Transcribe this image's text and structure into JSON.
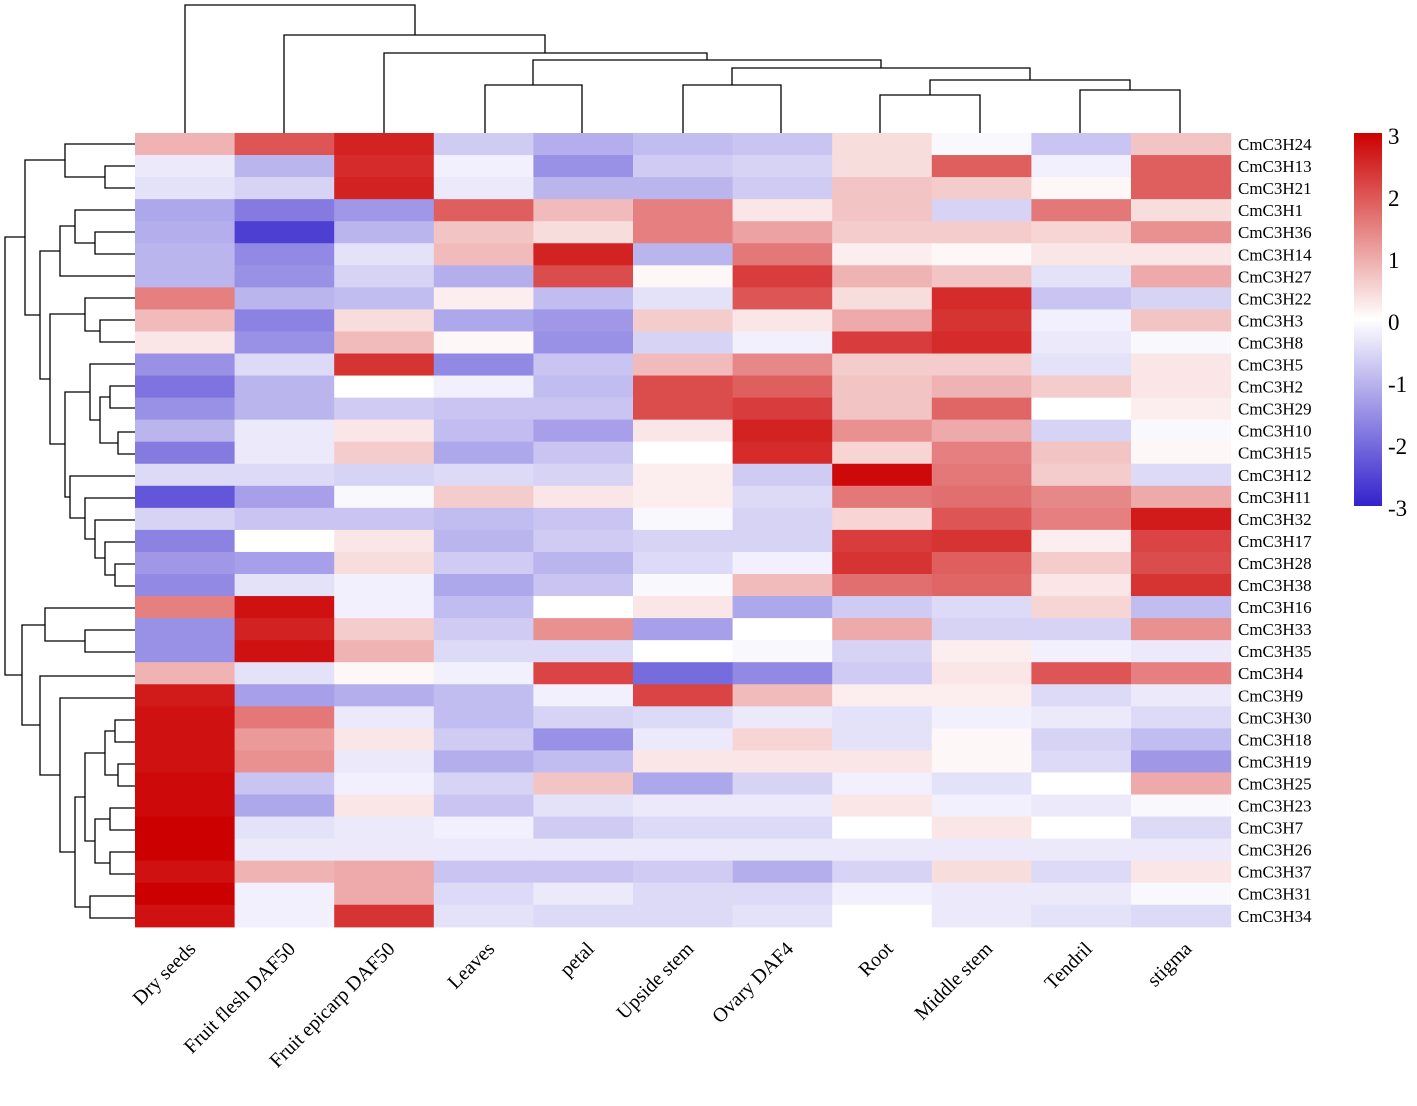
{
  "chart_data": {
    "type": "heatmap",
    "title": "",
    "colorscale": {
      "min": -3,
      "mid": 0,
      "max": 3,
      "low_color": "#3322cc",
      "mid_color": "#ffffff",
      "high_color": "#cc0000"
    },
    "legend": {
      "ticks": [
        "3",
        "2",
        "1",
        "0",
        "-1",
        "-2",
        "-3"
      ],
      "placement": "right"
    },
    "columns": [
      "Dry seeds",
      "Fruit flesh DAF50",
      "Fruit epicarp DAF50",
      "Leaves",
      "petal",
      "Upside stem",
      "Ovary DAF4",
      "Root",
      "Middle stem",
      "Tendril",
      "stigma"
    ],
    "rows": [
      "CmC3H24",
      "CmC3H13",
      "CmC3H21",
      "CmC3H1",
      "CmC3H36",
      "CmC3H14",
      "CmC3H27",
      "CmC3H22",
      "CmC3H3",
      "CmC3H8",
      "CmC3H5",
      "CmC3H2",
      "CmC3H29",
      "CmC3H10",
      "CmC3H15",
      "CmC3H12",
      "CmC3H11",
      "CmC3H32",
      "CmC3H17",
      "CmC3H28",
      "CmC3H38",
      "CmC3H16",
      "CmC3H33",
      "CmC3H35",
      "CmC3H4",
      "CmC3H9",
      "CmC3H30",
      "CmC3H18",
      "CmC3H19",
      "CmC3H25",
      "CmC3H23",
      "CmC3H7",
      "CmC3H26",
      "CmC3H37",
      "CmC3H31",
      "CmC3H34"
    ],
    "values": [
      [
        0.9,
        2.0,
        2.6,
        -0.7,
        -1.1,
        -0.9,
        -0.8,
        0.4,
        -0.1,
        -0.8,
        0.7
      ],
      [
        -0.3,
        -1.0,
        2.5,
        -0.2,
        -1.5,
        -0.7,
        -0.6,
        0.4,
        1.9,
        -0.2,
        1.9
      ],
      [
        -0.4,
        -0.6,
        2.6,
        -0.3,
        -1.0,
        -1.0,
        -0.7,
        0.7,
        0.6,
        0.1,
        1.9
      ],
      [
        -1.2,
        -1.8,
        -1.4,
        1.9,
        0.8,
        1.5,
        0.3,
        0.7,
        -0.6,
        1.6,
        0.4
      ],
      [
        -1.1,
        -2.6,
        -1.0,
        0.7,
        0.4,
        1.5,
        1.1,
        0.6,
        0.6,
        0.5,
        1.3
      ],
      [
        -1.0,
        -1.6,
        -0.4,
        0.8,
        2.6,
        -1.0,
        1.6,
        0.2,
        0.1,
        0.3,
        0.3
      ],
      [
        -1.0,
        -1.5,
        -0.6,
        -1.1,
        2.1,
        0.1,
        2.3,
        0.9,
        0.7,
        -0.4,
        1.0
      ],
      [
        1.5,
        -1.0,
        -0.9,
        0.2,
        -0.9,
        -0.4,
        2.0,
        0.4,
        2.5,
        -0.8,
        -0.6
      ],
      [
        0.8,
        -1.7,
        0.4,
        -1.2,
        -1.4,
        0.6,
        0.3,
        1.0,
        2.4,
        -0.2,
        0.7
      ],
      [
        0.3,
        -1.5,
        0.8,
        0.1,
        -1.5,
        -0.6,
        -0.2,
        2.3,
        2.5,
        -0.3,
        -0.1
      ],
      [
        -1.5,
        -0.5,
        2.4,
        -1.6,
        -0.8,
        0.8,
        1.4,
        0.6,
        0.6,
        -0.4,
        0.3
      ],
      [
        -1.9,
        -1.0,
        0.0,
        -0.2,
        -0.9,
        2.1,
        1.9,
        0.7,
        0.9,
        0.6,
        0.3
      ],
      [
        -1.5,
        -1.0,
        -0.7,
        -0.8,
        -0.8,
        2.1,
        2.3,
        0.7,
        1.8,
        0.0,
        0.2
      ],
      [
        -1.0,
        -0.3,
        0.3,
        -0.9,
        -1.3,
        0.3,
        2.6,
        1.3,
        1.0,
        -0.6,
        -0.1
      ],
      [
        -1.8,
        -0.3,
        0.6,
        -1.2,
        -0.8,
        0.0,
        2.5,
        0.5,
        1.5,
        0.7,
        0.1
      ],
      [
        -0.5,
        -0.5,
        -0.6,
        -0.5,
        -0.6,
        0.2,
        -0.7,
        2.9,
        1.6,
        0.6,
        -0.5
      ],
      [
        -2.3,
        -1.3,
        -0.1,
        0.6,
        0.3,
        0.2,
        -0.5,
        1.6,
        1.7,
        1.4,
        1.0
      ],
      [
        -0.6,
        -0.8,
        -0.8,
        -0.9,
        -0.8,
        -0.1,
        -0.6,
        0.5,
        2.0,
        1.5,
        2.7
      ],
      [
        -1.7,
        0.0,
        0.3,
        -1.0,
        -0.7,
        -0.6,
        -0.6,
        2.3,
        2.4,
        0.2,
        2.2
      ],
      [
        -1.4,
        -1.3,
        0.4,
        -0.7,
        -1.0,
        -0.5,
        -0.2,
        2.4,
        1.9,
        0.6,
        2.1
      ],
      [
        -1.6,
        -0.4,
        -0.2,
        -1.2,
        -0.8,
        -0.1,
        0.8,
        1.7,
        1.8,
        0.3,
        2.4
      ],
      [
        1.5,
        2.8,
        -0.2,
        -0.9,
        0.0,
        0.3,
        -1.2,
        -0.7,
        -0.5,
        0.5,
        -0.9
      ],
      [
        -1.5,
        2.6,
        0.6,
        -0.7,
        1.3,
        -1.3,
        0.0,
        1.0,
        -0.6,
        -0.6,
        1.3
      ],
      [
        -1.5,
        2.8,
        0.9,
        -0.5,
        -0.5,
        0.0,
        -0.1,
        -0.6,
        0.2,
        -0.2,
        -0.3
      ],
      [
        0.9,
        -0.4,
        0.1,
        -0.2,
        2.2,
        -2.0,
        -1.6,
        -0.7,
        0.3,
        2.0,
        1.5
      ],
      [
        2.7,
        -1.3,
        -1.1,
        -0.9,
        -0.2,
        2.2,
        0.8,
        0.2,
        0.2,
        -0.5,
        -0.3
      ],
      [
        2.8,
        1.6,
        -0.3,
        -0.9,
        -0.6,
        -0.5,
        -0.3,
        -0.4,
        -0.2,
        -0.3,
        -0.5
      ],
      [
        2.8,
        1.2,
        0.3,
        -0.7,
        -1.5,
        -0.3,
        0.5,
        -0.4,
        0.1,
        -0.6,
        -0.9
      ],
      [
        2.8,
        1.3,
        -0.3,
        -1.1,
        -0.9,
        0.3,
        0.3,
        0.3,
        0.1,
        -0.5,
        -1.4
      ],
      [
        2.9,
        -0.8,
        -0.2,
        -0.6,
        0.7,
        -1.2,
        -0.6,
        -0.2,
        -0.4,
        0.0,
        1.0
      ],
      [
        2.9,
        -1.2,
        0.3,
        -0.8,
        -0.4,
        -0.3,
        -0.3,
        0.3,
        -0.2,
        -0.3,
        -0.1
      ],
      [
        3.0,
        -0.4,
        -0.3,
        -0.2,
        -0.7,
        -0.5,
        -0.5,
        0.0,
        0.3,
        0.0,
        -0.5
      ],
      [
        3.0,
        -0.3,
        -0.3,
        -0.3,
        -0.3,
        -0.3,
        -0.3,
        -0.3,
        -0.3,
        -0.3,
        -0.3
      ],
      [
        2.8,
        0.9,
        1.0,
        -0.8,
        -0.8,
        -0.7,
        -1.1,
        -0.6,
        0.4,
        -0.5,
        0.3
      ],
      [
        3.0,
        -0.2,
        1.0,
        -0.5,
        -0.3,
        -0.5,
        -0.5,
        -0.2,
        -0.3,
        -0.3,
        -0.1
      ],
      [
        2.8,
        -0.2,
        2.4,
        -0.4,
        -0.5,
        -0.5,
        -0.4,
        0.0,
        -0.3,
        -0.4,
        -0.5
      ]
    ]
  }
}
